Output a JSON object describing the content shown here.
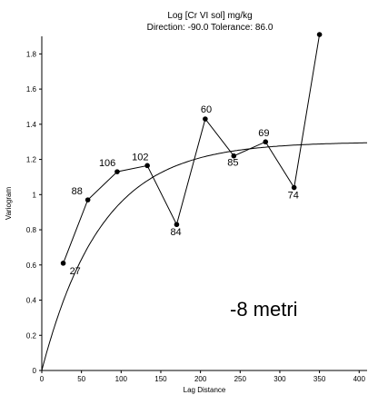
{
  "chart_data": {
    "type": "scatter",
    "title": "Log [Cr VI sol] mg/kg",
    "subtitle": "Direction: -90.0   Tolerance: 86.0",
    "xlabel": "Lag Distance",
    "ylabel": "Variogram",
    "xlim": [
      0,
      410
    ],
    "ylim": [
      0,
      1.9
    ],
    "x_ticks": [
      0,
      50,
      100,
      150,
      200,
      250,
      300,
      350,
      400
    ],
    "y_ticks": [
      0,
      0.2,
      0.4,
      0.6,
      0.8,
      1,
      1.2,
      1.4,
      1.6,
      1.8
    ],
    "grid": false,
    "annotation": "-8 metri",
    "series": [
      {
        "kind": "experimental",
        "x": [
          27,
          58,
          95,
          133,
          170,
          206,
          242,
          282,
          318,
          350
        ],
        "y": [
          0.61,
          0.97,
          1.13,
          1.165,
          0.83,
          1.43,
          1.22,
          1.3,
          1.04,
          1.91
        ],
        "pair_counts": [
          "27",
          "88",
          "106",
          "102",
          "84",
          "60",
          "85",
          "69",
          "74",
          ""
        ]
      },
      {
        "kind": "model",
        "model": "exponential",
        "nugget": 0,
        "sill": 1.3,
        "range": 75,
        "x_max": 410
      }
    ]
  }
}
